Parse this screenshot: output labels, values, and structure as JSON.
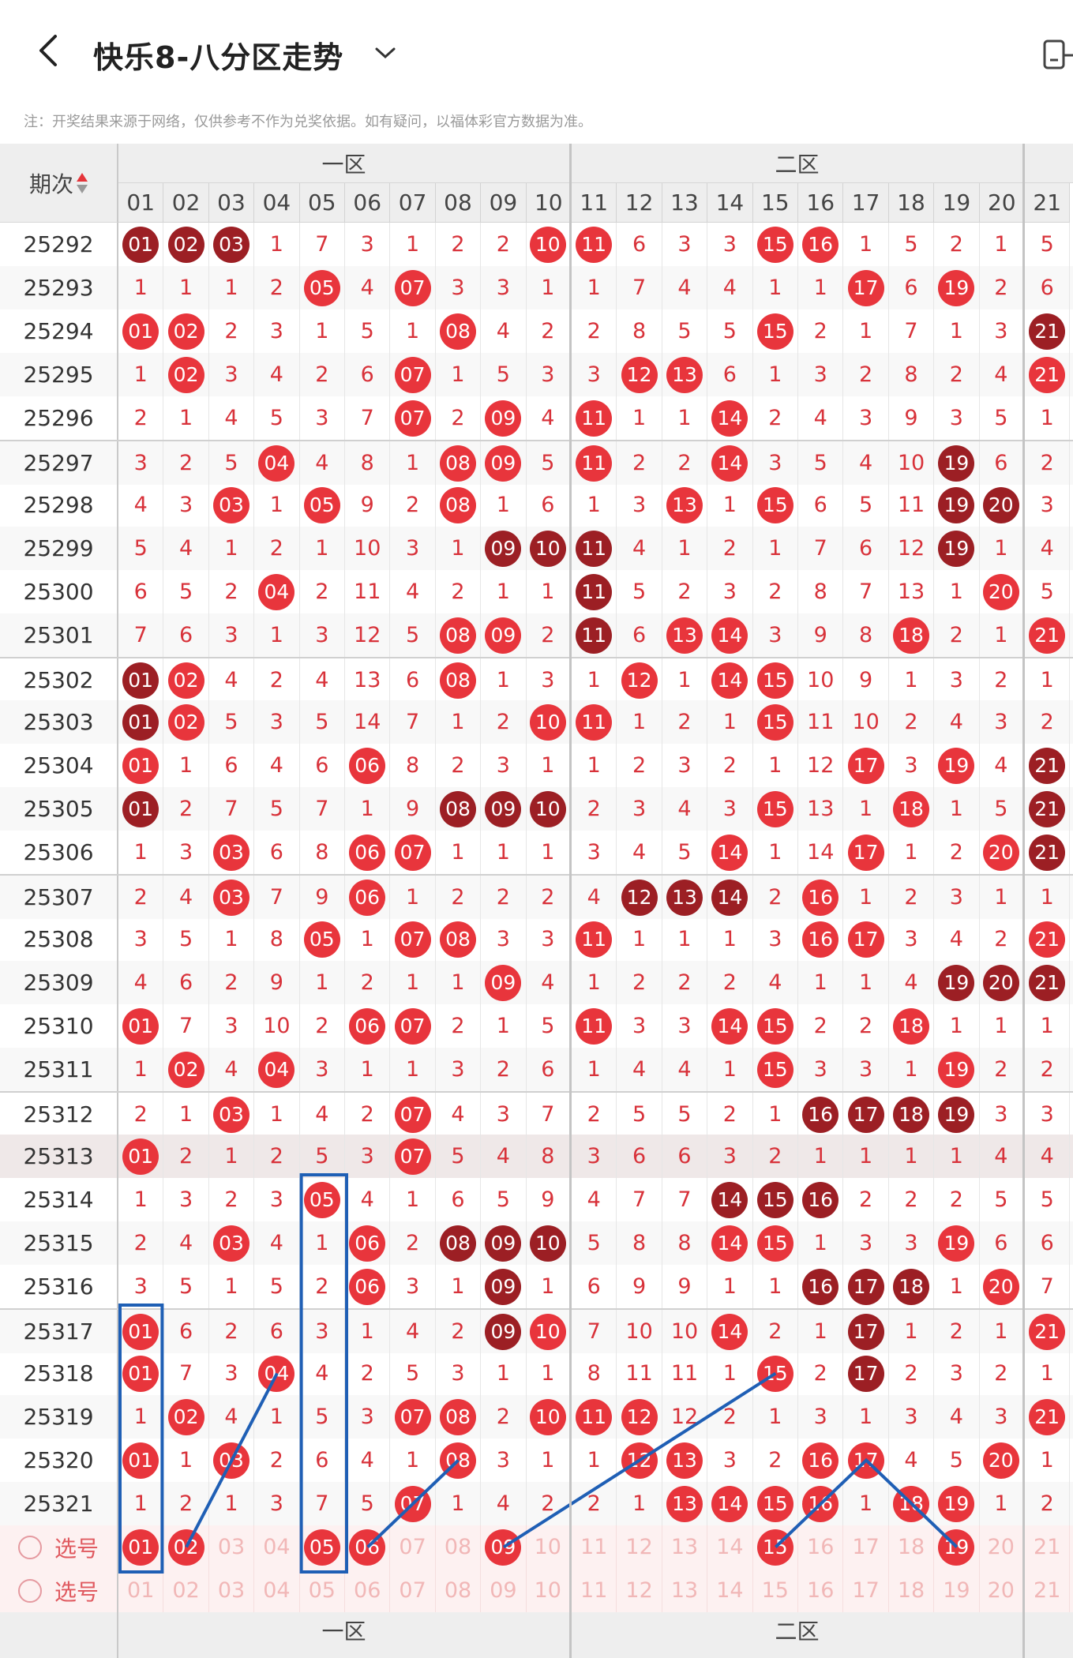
{
  "header": {
    "title": "快乐8-八分区走势",
    "back_icon": "chevron-left-icon",
    "dropdown_icon": "chevron-down-icon",
    "right_icon": "device-icon"
  },
  "notice": "注：开奖结果来源于网络，仅供参考不作为兑奖依据。如有疑问，以福体彩官方数据为准。",
  "table": {
    "issue_header": "期次",
    "zones": [
      "一区",
      "二区"
    ],
    "columns": [
      "01",
      "02",
      "03",
      "04",
      "05",
      "06",
      "07",
      "08",
      "09",
      "10",
      "11",
      "12",
      "13",
      "14",
      "15",
      "16",
      "17",
      "18",
      "19",
      "20",
      "21"
    ],
    "rows": [
      {
        "issue": "25292",
        "cells": [
          "01",
          "02",
          "03",
          "1",
          "7",
          "3",
          "1",
          "2",
          "2",
          "10",
          "11",
          "6",
          "3",
          "3",
          "15",
          "16",
          "1",
          "5",
          "2",
          "1",
          "5"
        ]
      },
      {
        "issue": "25293",
        "cells": [
          "1",
          "1",
          "1",
          "2",
          "05",
          "4",
          "07",
          "3",
          "3",
          "1",
          "1",
          "7",
          "4",
          "4",
          "1",
          "1",
          "17",
          "6",
          "19",
          "2",
          "6"
        ]
      },
      {
        "issue": "25294",
        "cells": [
          "01",
          "02",
          "2",
          "3",
          "1",
          "5",
          "1",
          "08",
          "4",
          "2",
          "2",
          "8",
          "5",
          "5",
          "15",
          "2",
          "1",
          "7",
          "1",
          "3",
          "21"
        ]
      },
      {
        "issue": "25295",
        "cells": [
          "1",
          "02",
          "3",
          "4",
          "2",
          "6",
          "07",
          "1",
          "5",
          "3",
          "3",
          "12",
          "13",
          "6",
          "1",
          "3",
          "2",
          "8",
          "2",
          "4",
          "21"
        ]
      },
      {
        "issue": "25296",
        "cells": [
          "2",
          "1",
          "4",
          "5",
          "3",
          "7",
          "07",
          "2",
          "09",
          "4",
          "11",
          "1",
          "1",
          "14",
          "2",
          "4",
          "3",
          "9",
          "3",
          "5",
          "1"
        ]
      },
      {
        "issue": "25297",
        "cells": [
          "3",
          "2",
          "5",
          "04",
          "4",
          "8",
          "1",
          "08",
          "09",
          "5",
          "11",
          "2",
          "2",
          "14",
          "3",
          "5",
          "4",
          "10",
          "19",
          "6",
          "2"
        ]
      },
      {
        "issue": "25298",
        "cells": [
          "4",
          "3",
          "03",
          "1",
          "05",
          "9",
          "2",
          "08",
          "1",
          "6",
          "1",
          "3",
          "13",
          "1",
          "15",
          "6",
          "5",
          "11",
          "19",
          "20",
          "3"
        ]
      },
      {
        "issue": "25299",
        "cells": [
          "5",
          "4",
          "1",
          "2",
          "1",
          "10",
          "3",
          "1",
          "09",
          "10",
          "11",
          "4",
          "1",
          "2",
          "1",
          "7",
          "6",
          "12",
          "19",
          "1",
          "4"
        ]
      },
      {
        "issue": "25300",
        "cells": [
          "6",
          "5",
          "2",
          "04",
          "2",
          "11",
          "4",
          "2",
          "1",
          "1",
          "11",
          "5",
          "2",
          "3",
          "2",
          "8",
          "7",
          "13",
          "1",
          "20",
          "5"
        ]
      },
      {
        "issue": "25301",
        "cells": [
          "7",
          "6",
          "3",
          "1",
          "3",
          "12",
          "5",
          "08",
          "09",
          "2",
          "11",
          "6",
          "13",
          "14",
          "3",
          "9",
          "8",
          "18",
          "2",
          "1",
          "21"
        ]
      },
      {
        "issue": "25302",
        "cells": [
          "01",
          "02",
          "4",
          "2",
          "4",
          "13",
          "6",
          "08",
          "1",
          "3",
          "1",
          "12",
          "1",
          "14",
          "15",
          "10",
          "9",
          "1",
          "3",
          "2",
          "1"
        ]
      },
      {
        "issue": "25303",
        "cells": [
          "01",
          "02",
          "5",
          "3",
          "5",
          "14",
          "7",
          "1",
          "2",
          "10",
          "11",
          "1",
          "2",
          "1",
          "15",
          "11",
          "10",
          "2",
          "4",
          "3",
          "2"
        ]
      },
      {
        "issue": "25304",
        "cells": [
          "01",
          "1",
          "6",
          "4",
          "6",
          "06",
          "8",
          "2",
          "3",
          "1",
          "1",
          "2",
          "3",
          "2",
          "1",
          "12",
          "17",
          "3",
          "19",
          "4",
          "21"
        ]
      },
      {
        "issue": "25305",
        "cells": [
          "01",
          "2",
          "7",
          "5",
          "7",
          "1",
          "9",
          "08",
          "09",
          "10",
          "2",
          "3",
          "4",
          "3",
          "15",
          "13",
          "1",
          "18",
          "1",
          "5",
          "21"
        ]
      },
      {
        "issue": "25306",
        "cells": [
          "1",
          "3",
          "03",
          "6",
          "8",
          "06",
          "07",
          "1",
          "1",
          "1",
          "3",
          "4",
          "5",
          "14",
          "1",
          "14",
          "17",
          "1",
          "2",
          "20",
          "21"
        ]
      },
      {
        "issue": "25307",
        "cells": [
          "2",
          "4",
          "03",
          "7",
          "9",
          "06",
          "1",
          "2",
          "2",
          "2",
          "4",
          "12",
          "13",
          "14",
          "2",
          "16",
          "1",
          "2",
          "3",
          "1",
          "1"
        ]
      },
      {
        "issue": "25308",
        "cells": [
          "3",
          "5",
          "1",
          "8",
          "05",
          "1",
          "07",
          "08",
          "3",
          "3",
          "11",
          "1",
          "1",
          "1",
          "3",
          "16",
          "17",
          "3",
          "4",
          "2",
          "21"
        ]
      },
      {
        "issue": "25309",
        "cells": [
          "4",
          "6",
          "2",
          "9",
          "1",
          "2",
          "1",
          "1",
          "09",
          "4",
          "1",
          "2",
          "2",
          "2",
          "4",
          "1",
          "1",
          "4",
          "19",
          "20",
          "21"
        ]
      },
      {
        "issue": "25310",
        "cells": [
          "01",
          "7",
          "3",
          "10",
          "2",
          "06",
          "07",
          "2",
          "1",
          "5",
          "11",
          "3",
          "3",
          "14",
          "15",
          "2",
          "2",
          "18",
          "1",
          "1",
          "1"
        ]
      },
      {
        "issue": "25311",
        "cells": [
          "1",
          "02",
          "4",
          "04",
          "3",
          "1",
          "1",
          "3",
          "2",
          "6",
          "1",
          "4",
          "4",
          "1",
          "15",
          "3",
          "3",
          "1",
          "19",
          "2",
          "2"
        ]
      },
      {
        "issue": "25312",
        "cells": [
          "2",
          "1",
          "03",
          "1",
          "4",
          "2",
          "07",
          "4",
          "3",
          "7",
          "2",
          "5",
          "5",
          "2",
          "1",
          "16",
          "17",
          "18",
          "19",
          "3",
          "3"
        ]
      },
      {
        "issue": "25313",
        "cells": [
          "01",
          "2",
          "1",
          "2",
          "5",
          "3",
          "07",
          "5",
          "4",
          "8",
          "3",
          "6",
          "6",
          "3",
          "2",
          "1",
          "1",
          "1",
          "1",
          "4",
          "4"
        ]
      },
      {
        "issue": "25314",
        "cells": [
          "1",
          "3",
          "2",
          "3",
          "05",
          "4",
          "1",
          "6",
          "5",
          "9",
          "4",
          "7",
          "7",
          "14",
          "15",
          "16",
          "2",
          "2",
          "2",
          "5",
          "5"
        ]
      },
      {
        "issue": "25315",
        "cells": [
          "2",
          "4",
          "03",
          "4",
          "1",
          "06",
          "2",
          "08",
          "09",
          "10",
          "5",
          "8",
          "8",
          "14",
          "15",
          "1",
          "3",
          "3",
          "19",
          "6",
          "6"
        ]
      },
      {
        "issue": "25316",
        "cells": [
          "3",
          "5",
          "1",
          "5",
          "2",
          "06",
          "3",
          "1",
          "09",
          "1",
          "6",
          "9",
          "9",
          "1",
          "1",
          "16",
          "17",
          "18",
          "1",
          "20",
          "7"
        ]
      },
      {
        "issue": "25317",
        "cells": [
          "01",
          "6",
          "2",
          "6",
          "3",
          "1",
          "4",
          "2",
          "09",
          "10",
          "7",
          "10",
          "10",
          "14",
          "2",
          "1",
          "17",
          "1",
          "2",
          "1",
          "21"
        ]
      },
      {
        "issue": "25318",
        "cells": [
          "01",
          "7",
          "3",
          "04",
          "4",
          "2",
          "5",
          "3",
          "1",
          "1",
          "8",
          "11",
          "11",
          "1",
          "15",
          "2",
          "17",
          "2",
          "3",
          "2",
          "1"
        ]
      },
      {
        "issue": "25319",
        "cells": [
          "1",
          "02",
          "4",
          "1",
          "5",
          "3",
          "07",
          "08",
          "2",
          "10",
          "11",
          "12",
          "12",
          "2",
          "1",
          "3",
          "1",
          "3",
          "4",
          "3",
          "21"
        ]
      },
      {
        "issue": "25320",
        "cells": [
          "01",
          "1",
          "03",
          "2",
          "6",
          "4",
          "1",
          "08",
          "3",
          "1",
          "1",
          "12",
          "13",
          "3",
          "2",
          "16",
          "17",
          "4",
          "5",
          "20",
          "1"
        ]
      },
      {
        "issue": "25321",
        "cells": [
          "1",
          "2",
          "1",
          "3",
          "7",
          "5",
          "07",
          "1",
          "4",
          "2",
          "2",
          "1",
          "13",
          "14",
          "15",
          "16",
          "1",
          "18",
          "19",
          "1",
          "2"
        ]
      }
    ],
    "dark_balls": [
      "0-0",
      "0-1",
      "0-2",
      "7-8",
      "7-9",
      "7-10",
      "8-10",
      "9-10",
      "10-0",
      "11-0",
      "12-20",
      "13-0",
      "13-7",
      "13-8",
      "13-9",
      "13-20",
      "14-20",
      "5-18",
      "6-18",
      "6-19",
      "7-18",
      "15-11",
      "15-12",
      "15-13",
      "17-18",
      "17-19",
      "17-20",
      "20-15",
      "20-16",
      "20-17",
      "20-18",
      "21-15",
      "21-16",
      "22-13",
      "22-14",
      "22-15",
      "23-7",
      "23-8",
      "23-9",
      "24-8",
      "24-15",
      "24-16",
      "24-17",
      "25-8",
      "25-16",
      "26-16",
      "2-20"
    ],
    "selection_rows": [
      {
        "label": "选号",
        "selected": [
          "01",
          "02",
          "05",
          "06",
          "09",
          "15",
          "19"
        ]
      },
      {
        "label": "选号",
        "selected": []
      }
    ],
    "bottom_zones": [
      "一区",
      "二区"
    ]
  }
}
